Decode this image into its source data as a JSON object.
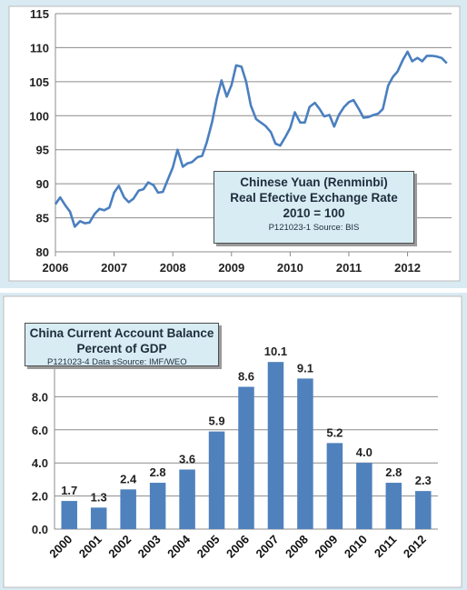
{
  "chart_data": [
    {
      "type": "line",
      "title": "Chinese Yuan (Renminbi)",
      "subtitle": "Real Efective Exchange Rate",
      "base_note": "2010 = 100",
      "source": "P121023-1 Source: BIS",
      "xlabel": "",
      "ylabel": "",
      "x_ticks": [
        "2006",
        "2007",
        "2008",
        "2009",
        "2010",
        "2011",
        "2012"
      ],
      "y_ticks": [
        "80",
        "85",
        "90",
        "95",
        "100",
        "105",
        "110",
        "115"
      ],
      "ylim": [
        80,
        115
      ],
      "xlim": [
        2006.0,
        2012.75
      ],
      "grid": "horizontal",
      "line_color": "#4a7fbf",
      "series": [
        {
          "x": [
            2006.0,
            2006.08,
            2006.17,
            2006.25,
            2006.33,
            2006.42,
            2006.5,
            2006.58,
            2006.67,
            2006.75,
            2006.83,
            2006.92,
            2007.0,
            2007.08,
            2007.17,
            2007.25,
            2007.33,
            2007.42,
            2007.5,
            2007.58,
            2007.67,
            2007.75,
            2007.83,
            2007.92,
            2008.0,
            2008.08,
            2008.17,
            2008.25,
            2008.33,
            2008.42,
            2008.5,
            2008.58,
            2008.67,
            2008.75,
            2008.83,
            2008.92,
            2009.0,
            2009.08,
            2009.17,
            2009.25,
            2009.33,
            2009.42,
            2009.5,
            2009.58,
            2009.67,
            2009.75,
            2009.83,
            2009.92,
            2010.0,
            2010.08,
            2010.17,
            2010.25,
            2010.33,
            2010.42,
            2010.5,
            2010.58,
            2010.67,
            2010.75,
            2010.83,
            2010.92,
            2011.0,
            2011.08,
            2011.17,
            2011.25,
            2011.33,
            2011.42,
            2011.5,
            2011.58,
            2011.67,
            2011.75,
            2011.83,
            2011.92,
            2012.0,
            2012.08,
            2012.17,
            2012.25,
            2012.33,
            2012.42,
            2012.5,
            2012.58,
            2012.67
          ],
          "values": [
            87.0,
            88.0,
            86.8,
            85.9,
            83.7,
            84.5,
            84.2,
            84.3,
            85.6,
            86.3,
            86.1,
            86.5,
            88.7,
            89.7,
            88.0,
            87.3,
            87.8,
            89.0,
            89.2,
            90.2,
            89.8,
            88.7,
            88.8,
            90.7,
            92.4,
            95.0,
            92.5,
            93.0,
            93.2,
            93.9,
            94.1,
            96.1,
            99.1,
            102.5,
            105.2,
            102.8,
            104.5,
            107.4,
            107.2,
            105.0,
            101.5,
            99.5,
            99.0,
            98.5,
            97.6,
            95.9,
            95.6,
            96.9,
            98.2,
            100.5,
            99.0,
            99.0,
            101.3,
            101.9,
            101.0,
            99.9,
            100.1,
            98.4,
            100.1,
            101.3,
            102.0,
            102.3,
            101.0,
            99.7,
            99.8,
            100.1,
            100.3,
            101.0,
            104.4,
            105.7,
            106.5,
            108.2,
            109.4,
            108.0,
            108.5,
            108.0,
            108.8,
            108.8,
            108.7,
            108.5,
            107.7
          ]
        }
      ]
    },
    {
      "type": "bar",
      "title": "China Current Account Balance",
      "subtitle": "Percent of GDP",
      "source": "P121023-4 Data sSource: IMF/WEO",
      "xlabel": "",
      "ylabel": "",
      "categories": [
        "2000",
        "2001",
        "2002",
        "2003",
        "2004",
        "2005",
        "2006",
        "2007",
        "2008",
        "2009",
        "2010",
        "2011",
        "2012"
      ],
      "values": [
        1.7,
        1.3,
        2.4,
        2.8,
        3.6,
        5.9,
        8.6,
        10.1,
        9.1,
        5.2,
        4.0,
        2.8,
        2.3
      ],
      "labels": [
        "1.7",
        "1.3",
        "2.4",
        "2.8",
        "3.6",
        "5.9",
        "8.6",
        "10.1",
        "9.1",
        "5.2",
        "4.0",
        "2.8",
        "2.3"
      ],
      "y_ticks": [
        "0.0",
        "2.0",
        "4.0",
        "6.0",
        "8.0"
      ],
      "ylim": [
        0,
        11.0
      ],
      "grid": "horizontal",
      "bar_color": "#4f81bd"
    }
  ]
}
